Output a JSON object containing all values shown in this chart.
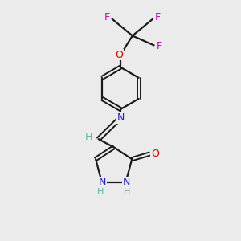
{
  "background_color": "#ebebeb",
  "bond_color": "#1a1a1a",
  "N_color": "#2020cc",
  "O_color": "#dd0000",
  "F_color": "#cc00cc",
  "H_color": "#5ab8a8",
  "figsize": [
    3.0,
    3.0
  ],
  "dpi": 100,
  "xlim": [
    0,
    10
  ],
  "ylim": [
    0,
    10
  ]
}
